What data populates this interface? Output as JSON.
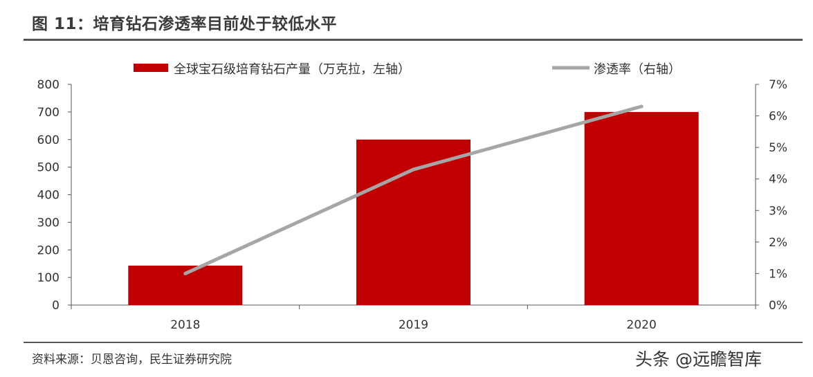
{
  "figure": {
    "title": "图 11：培育钻石渗透率目前处于较低水平",
    "source": "资料来源：贝恩咨询，民生证券研究院",
    "watermark": "头条 @远瞻智库"
  },
  "colors": {
    "bar": "#C00000",
    "line": "#A6A6A6",
    "axis": "#555555",
    "text": "#333333"
  },
  "chart_data": {
    "type": "bar",
    "categories": [
      "2018",
      "2019",
      "2020"
    ],
    "series": [
      {
        "name": "全球宝石级培育钻石产量（万克拉，左轴）",
        "type": "bar",
        "axis": "left",
        "values": [
          143,
          600,
          700
        ]
      },
      {
        "name": "渗透率（右轴）",
        "type": "line",
        "axis": "right",
        "values": [
          0.01,
          0.043,
          0.063
        ]
      }
    ],
    "left_axis": {
      "ylim": [
        0,
        800
      ],
      "ticks": [
        "0",
        "100",
        "200",
        "300",
        "400",
        "500",
        "600",
        "700",
        "800"
      ]
    },
    "right_axis": {
      "ylim": [
        0,
        0.07
      ],
      "ticks": [
        "0%",
        "1%",
        "2%",
        "3%",
        "4%",
        "5%",
        "6%",
        "7%"
      ]
    },
    "legend_position": "top-center",
    "grid": false
  }
}
